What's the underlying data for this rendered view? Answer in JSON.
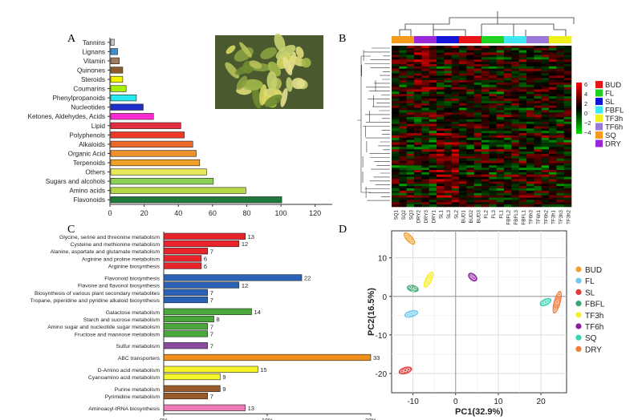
{
  "panel_labels": {
    "a": "A",
    "b": "B",
    "c": "C",
    "d": "D"
  },
  "chart_data": [
    {
      "type": "bar",
      "panel": "A",
      "orientation": "horizontal",
      "categories": [
        "Tannins",
        "Lignans",
        "Vitamin",
        "Quinones",
        "Steroids",
        "Coumarins",
        "Phenylpropanoids",
        "Nucleotides",
        "Ketones, Aldehydes, Acids",
        "Lipid",
        "Polyphenols",
        "Alkaloids",
        "Organic Acid",
        "Terpenoids",
        "Others",
        "Sugars and alcohols",
        "Amino acids",
        "Flavonoids"
      ],
      "values": [
        2,
        4,
        5,
        7,
        7,
        9,
        15,
        19,
        25,
        41,
        43,
        48,
        50,
        52,
        56,
        60,
        79,
        100
      ],
      "colors": [
        "#c8c8c8",
        "#3c8fd0",
        "#a07c5a",
        "#8b5a2b",
        "#f2f200",
        "#a8f000",
        "#29e8f0",
        "#1e2ec8",
        "#ff2ad2",
        "#e03040",
        "#f03a28",
        "#ee6a2a",
        "#f0902a",
        "#f0a02a",
        "#e8e85a",
        "#8cd25a",
        "#b4d848",
        "#1e7a3a"
      ],
      "xticks": [
        "0",
        "20",
        "40",
        "60",
        "80",
        "100",
        "120"
      ],
      "xlim": [
        0,
        130
      ]
    },
    {
      "type": "heatmap",
      "panel": "B",
      "columns": [
        "SQ1",
        "SQ2",
        "SQ3",
        "DRY2",
        "DRY3",
        "DRY1",
        "SL1",
        "SL3",
        "SL2",
        "BUD1",
        "BUD2",
        "BUD3",
        "FL2",
        "FL3",
        "FL1",
        "FBFL2",
        "FBFL3",
        "FBFL1",
        "TF6h3",
        "TF6h1",
        "TF6h2",
        "TF3h1",
        "TF3h3",
        "TF3h2"
      ],
      "column_groups": [
        "SQ",
        "SQ",
        "SQ",
        "DRY",
        "DRY",
        "DRY",
        "SL",
        "SL",
        "SL",
        "BUD",
        "BUD",
        "BUD",
        "FL",
        "FL",
        "FL",
        "FBFL",
        "FBFL",
        "FBFL",
        "TF6h",
        "TF6h",
        "TF6h",
        "TF3h",
        "TF3h",
        "TF3h"
      ],
      "color_scale": {
        "ticks": [
          "6",
          "4",
          "2",
          "0",
          "−2",
          "−4"
        ],
        "low": "#00e000",
        "mid": "#000000",
        "high": "#ff0000"
      },
      "legend": [
        {
          "name": "BUD",
          "color": "#e8141a"
        },
        {
          "name": "FL",
          "color": "#1fd21f"
        },
        {
          "name": "SL",
          "color": "#1414d8"
        },
        {
          "name": "FBFL",
          "color": "#3fe8f0"
        },
        {
          "name": "TF3h",
          "color": "#f0f01a"
        },
        {
          "name": "TF6h",
          "color": "#9a78d8"
        },
        {
          "name": "SQ",
          "color": "#f59a1a"
        },
        {
          "name": "DRY",
          "color": "#9a28d8"
        }
      ]
    },
    {
      "type": "bar",
      "panel": "C",
      "orientation": "horizontal",
      "categories": [
        "Glycine, serine and threonine metabolism",
        "Cysteine and methionine metabolism",
        "Alanine, aspartate and glutamate metabolism",
        "Arginine and proline metabolism",
        "Arginine biosynthesis",
        "Flavonoid biosynthesis",
        "Flavone and flavonol biosynthesis",
        "Biosynthesis of various plant secondary metabolites",
        "Tropane, piperidine and pyridine alkaloid biosynthesis",
        "Galactose metabolism",
        "Starch and sucrose metabolism",
        "Amino sugar and nucleotide sugar metabolism",
        "Fructose and mannose metabolism",
        "Sulfur metabolism",
        "ABC transporters",
        "D-Amino acid metabolism",
        "Cyanoamino acid metabolism",
        "Purine metabolism",
        "Pyrimidine metabolism",
        "Aminoacyl-tRNA biosynthesis"
      ],
      "values": [
        13,
        12,
        7,
        6,
        6,
        22,
        12,
        7,
        7,
        14,
        8,
        7,
        7,
        7,
        33,
        15,
        9,
        9,
        7,
        13
      ],
      "value_labels": [
        "13",
        "12",
        "7",
        "6",
        "6",
        "22",
        "12",
        "7",
        "7",
        "14",
        "8",
        "7",
        "7",
        "7",
        "33",
        "15",
        "9",
        "9",
        "7",
        "13"
      ],
      "colors": [
        "#e8242a",
        "#e8242a",
        "#e8242a",
        "#e8242a",
        "#e8242a",
        "#2a62b8",
        "#2a62b8",
        "#2a62b8",
        "#2a62b8",
        "#4aa83a",
        "#4aa83a",
        "#4aa83a",
        "#4aa83a",
        "#8a4aa0",
        "#f0901a",
        "#f5f52a",
        "#f5f52a",
        "#9a5a2a",
        "#9a5a2a",
        "#f07ab8"
      ],
      "xticks": [
        "0%",
        "10%",
        "20%"
      ],
      "xlim": [
        0,
        33
      ]
    },
    {
      "type": "scatter",
      "panel": "D",
      "xlabel": "PC1(32.9%)",
      "ylabel": "PC2(16.5%)",
      "xlim": [
        -15,
        26
      ],
      "ylim": [
        -25,
        17
      ],
      "xticks": [
        "-10",
        "0",
        "10",
        "20"
      ],
      "yticks": [
        "10",
        "0",
        "-10",
        "-20"
      ],
      "grid": true,
      "legend_position": "right",
      "series": [
        {
          "name": "BUD",
          "color": "#f0a030",
          "points": [
            [
              -11.5,
              15.8
            ],
            [
              -10.8,
              15.0
            ],
            [
              -10.2,
              14.2
            ]
          ]
        },
        {
          "name": "FL",
          "color": "#70c8ec",
          "points": [
            [
              -11.2,
              -4.8
            ],
            [
              -10.4,
              -4.5
            ],
            [
              -9.6,
              -4.3
            ]
          ]
        },
        {
          "name": "SL",
          "color": "#e03a3a",
          "points": [
            [
              -12.5,
              -19.5
            ],
            [
              -11.8,
              -19.2
            ],
            [
              -11.0,
              -19.0
            ]
          ]
        },
        {
          "name": "FBFL",
          "color": "#3aa870",
          "points": [
            [
              -10.6,
              2.4
            ],
            [
              -10.0,
              1.6
            ],
            [
              -9.5,
              2.1
            ]
          ]
        },
        {
          "name": "TF3h",
          "color": "#f5f02a",
          "points": [
            [
              -6.9,
              3.2
            ],
            [
              -6.3,
              4.2
            ],
            [
              -5.8,
              5.6
            ]
          ]
        },
        {
          "name": "TF6h",
          "color": "#8a1ea0",
          "points": [
            [
              3.7,
              5.3
            ],
            [
              4.0,
              5.0
            ],
            [
              4.3,
              4.7
            ]
          ]
        },
        {
          "name": "SQ",
          "color": "#3ad2b4",
          "points": [
            [
              20.5,
              -1.8
            ],
            [
              21.1,
              -1.5
            ],
            [
              21.6,
              -1.2
            ]
          ]
        },
        {
          "name": "DRY",
          "color": "#f07a3a",
          "points": [
            [
              23.3,
              -3.5
            ],
            [
              23.8,
              -1.5
            ],
            [
              24.3,
              0.5
            ]
          ]
        }
      ]
    }
  ]
}
